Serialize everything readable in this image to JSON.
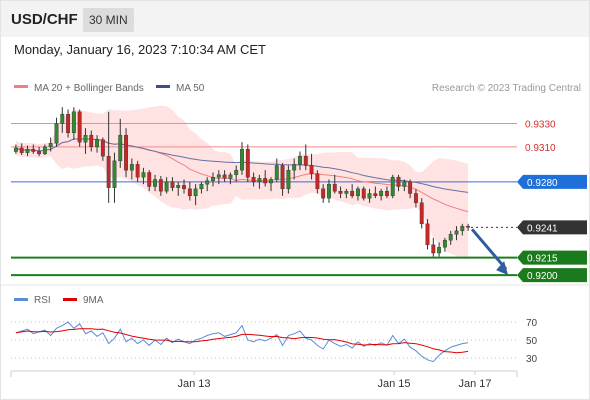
{
  "header": {
    "symbol": "USD/CHF",
    "interval": "30 MIN",
    "datetime": "Monday, January 16, 2023 7:10:34 AM CET"
  },
  "legend": {
    "ma20_label": "MA 20 + Bollinger Bands",
    "ma50_label": "MA 50",
    "credit": "Research © 2023 Trading Central",
    "rsi_label": "RSI",
    "ma9_label": "9MA"
  },
  "colors": {
    "bullish": "#2e8b2e",
    "bearish": "#c62828",
    "bollinger_fill": "#ffd9d9",
    "ma20": "#f08080",
    "ma50": "#6670a8",
    "resistance": "#f28b8b",
    "pivot": "#3a6bd8",
    "support": "#1e7e1e",
    "current": "#333333",
    "rsi": "#5b8bd9",
    "ma9": "#e00000"
  },
  "chart_data": [
    {
      "type": "candlestick",
      "title": "",
      "x_tick_labels": [
        "Jan 13",
        "Jan 15",
        "Jan 17"
      ],
      "y_axis": "right",
      "ylim": [
        0.9195,
        0.9345
      ],
      "levels": [
        {
          "value": 0.933,
          "label": "0.9330",
          "kind": "resistance"
        },
        {
          "value": 0.931,
          "label": "0.9310",
          "kind": "resistance"
        },
        {
          "value": 0.928,
          "label": "0.9280",
          "kind": "pivot"
        },
        {
          "value": 0.9241,
          "label": "0.9241",
          "kind": "current"
        },
        {
          "value": 0.9215,
          "label": "0.9215",
          "kind": "support"
        },
        {
          "value": 0.92,
          "label": "0.9200",
          "kind": "support"
        }
      ],
      "series": [
        {
          "name": "USD/CHF",
          "candles": [
            [
              0.9306,
              0.9312,
              0.9304,
              0.9309
            ],
            [
              0.9309,
              0.9313,
              0.9303,
              0.9305
            ],
            [
              0.9305,
              0.9311,
              0.9302,
              0.9308
            ],
            [
              0.9308,
              0.9312,
              0.9304,
              0.9306
            ],
            [
              0.9306,
              0.931,
              0.9302,
              0.9304
            ],
            [
              0.9304,
              0.9312,
              0.9303,
              0.931
            ],
            [
              0.931,
              0.9318,
              0.9306,
              0.9313
            ],
            [
              0.9313,
              0.9335,
              0.931,
              0.933
            ],
            [
              0.933,
              0.9344,
              0.9322,
              0.9338
            ],
            [
              0.9338,
              0.9342,
              0.9318,
              0.9322
            ],
            [
              0.9322,
              0.9344,
              0.9316,
              0.934
            ],
            [
              0.934,
              0.9342,
              0.931,
              0.9314
            ],
            [
              0.9314,
              0.9326,
              0.9304,
              0.932
            ],
            [
              0.932,
              0.9324,
              0.9306,
              0.931
            ],
            [
              0.931,
              0.932,
              0.9305,
              0.9316
            ],
            [
              0.9316,
              0.9318,
              0.9298,
              0.9302
            ],
            [
              0.9302,
              0.934,
              0.9262,
              0.9275
            ],
            [
              0.9275,
              0.9305,
              0.9262,
              0.9298
            ],
            [
              0.9298,
              0.9334,
              0.9292,
              0.932
            ],
            [
              0.932,
              0.9326,
              0.9284,
              0.929
            ],
            [
              0.929,
              0.93,
              0.9282,
              0.9295
            ],
            [
              0.9295,
              0.9298,
              0.928,
              0.9284
            ],
            [
              0.9284,
              0.9292,
              0.9278,
              0.9288
            ],
            [
              0.9288,
              0.929,
              0.9272,
              0.9276
            ],
            [
              0.9276,
              0.9286,
              0.9272,
              0.9282
            ],
            [
              0.9282,
              0.9285,
              0.9268,
              0.9272
            ],
            [
              0.9272,
              0.9284,
              0.927,
              0.928
            ],
            [
              0.928,
              0.9284,
              0.9272,
              0.9275
            ],
            [
              0.9275,
              0.928,
              0.9268,
              0.9277
            ],
            [
              0.9277,
              0.9282,
              0.927,
              0.9274
            ],
            [
              0.9274,
              0.928,
              0.9264,
              0.9268
            ],
            [
              0.9268,
              0.9278,
              0.926,
              0.9274
            ],
            [
              0.9274,
              0.928,
              0.927,
              0.9278
            ],
            [
              0.9278,
              0.9284,
              0.9272,
              0.9281
            ],
            [
              0.9281,
              0.9288,
              0.9276,
              0.9284
            ],
            [
              0.9284,
              0.929,
              0.9278,
              0.9286
            ],
            [
              0.9286,
              0.929,
              0.928,
              0.9283
            ],
            [
              0.9283,
              0.9288,
              0.9278,
              0.9286
            ],
            [
              0.9286,
              0.9294,
              0.928,
              0.929
            ],
            [
              0.929,
              0.9314,
              0.9286,
              0.9308
            ],
            [
              0.9308,
              0.9312,
              0.928,
              0.9284
            ],
            [
              0.9284,
              0.9288,
              0.9276,
              0.928
            ],
            [
              0.928,
              0.9286,
              0.9274,
              0.9283
            ],
            [
              0.9283,
              0.929,
              0.9276,
              0.9279
            ],
            [
              0.9279,
              0.9284,
              0.9272,
              0.9282
            ],
            [
              0.9282,
              0.93,
              0.928,
              0.9294
            ],
            [
              0.9294,
              0.9296,
              0.9268,
              0.9274
            ],
            [
              0.9274,
              0.9294,
              0.927,
              0.929
            ],
            [
              0.929,
              0.93,
              0.9282,
              0.9295
            ],
            [
              0.9295,
              0.9306,
              0.929,
              0.9302
            ],
            [
              0.9302,
              0.9312,
              0.929,
              0.9294
            ],
            [
              0.9294,
              0.9304,
              0.9282,
              0.9287
            ],
            [
              0.9287,
              0.929,
              0.927,
              0.9274
            ],
            [
              0.9274,
              0.9278,
              0.9262,
              0.9266
            ],
            [
              0.9266,
              0.9282,
              0.9262,
              0.9278
            ],
            [
              0.9278,
              0.9286,
              0.927,
              0.9272
            ],
            [
              0.9272,
              0.9276,
              0.9266,
              0.927
            ],
            [
              0.927,
              0.9274,
              0.9266,
              0.9272
            ],
            [
              0.9272,
              0.9278,
              0.9266,
              0.9268
            ],
            [
              0.9268,
              0.9276,
              0.9264,
              0.9274
            ],
            [
              0.9274,
              0.9276,
              0.9264,
              0.9266
            ],
            [
              0.9266,
              0.9274,
              0.9262,
              0.927
            ],
            [
              0.927,
              0.9276,
              0.9266,
              0.9268
            ],
            [
              0.9268,
              0.9274,
              0.9264,
              0.9272
            ],
            [
              0.9272,
              0.9276,
              0.9266,
              0.9268
            ],
            [
              0.9268,
              0.9286,
              0.9266,
              0.9284
            ],
            [
              0.9284,
              0.9286,
              0.9272,
              0.9276
            ],
            [
              0.9276,
              0.9282,
              0.9272,
              0.928
            ],
            [
              0.928,
              0.9282,
              0.9266,
              0.927
            ],
            [
              0.927,
              0.9274,
              0.9258,
              0.9262
            ],
            [
              0.9262,
              0.9266,
              0.924,
              0.9244
            ],
            [
              0.9244,
              0.9248,
              0.9222,
              0.9226
            ],
            [
              0.9226,
              0.9232,
              0.9216,
              0.9219
            ],
            [
              0.9219,
              0.9228,
              0.9216,
              0.9224
            ],
            [
              0.9224,
              0.9232,
              0.922,
              0.923
            ],
            [
              0.923,
              0.9238,
              0.9226,
              0.9235
            ],
            [
              0.9235,
              0.9242,
              0.923,
              0.9238
            ],
            [
              0.9238,
              0.9244,
              0.9234,
              0.9242
            ],
            [
              0.9242,
              0.9244,
              0.9238,
              0.9241
            ]
          ]
        },
        {
          "name": "MA 20 + Bollinger Bands"
        },
        {
          "name": "MA 50"
        }
      ]
    },
    {
      "type": "line",
      "title": "",
      "y_ticks": [
        70,
        50,
        30
      ],
      "ylim": [
        20,
        80
      ],
      "series": [
        {
          "name": "RSI",
          "values": [
            58,
            60,
            62,
            57,
            59,
            61,
            55,
            63,
            66,
            70,
            63,
            68,
            57,
            60,
            54,
            58,
            46,
            52,
            62,
            48,
            52,
            46,
            50,
            44,
            50,
            45,
            52,
            47,
            51,
            48,
            46,
            50,
            52,
            55,
            57,
            58,
            54,
            56,
            58,
            66,
            50,
            48,
            51,
            49,
            52,
            56,
            44,
            55,
            57,
            60,
            52,
            50,
            44,
            40,
            50,
            46,
            43,
            45,
            41,
            48,
            43,
            46,
            44,
            47,
            44,
            55,
            46,
            51,
            42,
            38,
            32,
            28,
            26,
            33,
            38,
            42,
            44,
            46,
            47
          ]
        },
        {
          "name": "9MA"
        }
      ]
    }
  ]
}
